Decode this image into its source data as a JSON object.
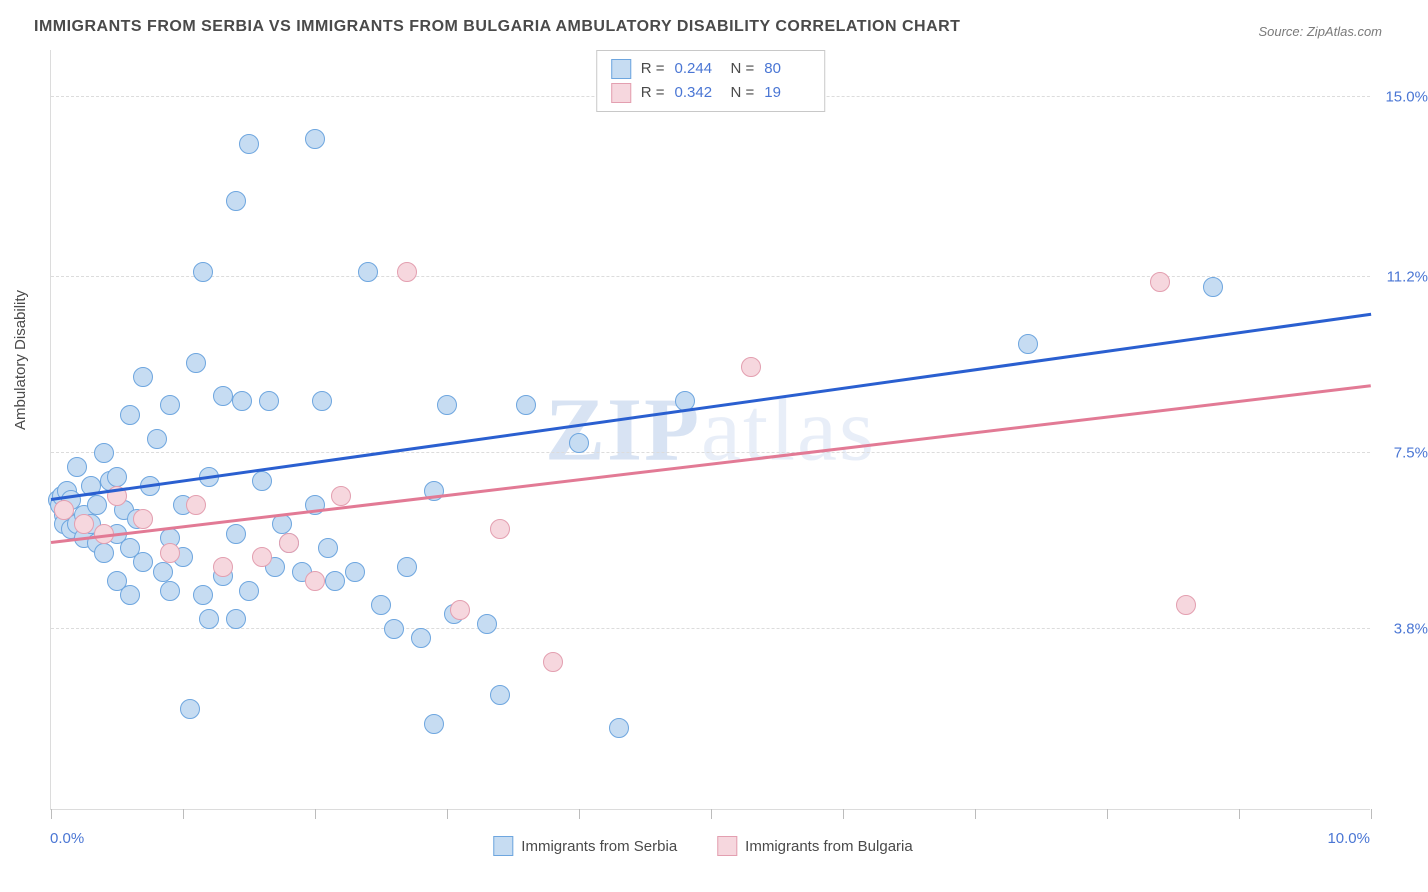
{
  "title": "IMMIGRANTS FROM SERBIA VS IMMIGRANTS FROM BULGARIA AMBULATORY DISABILITY CORRELATION CHART",
  "source": "Source: ZipAtlas.com",
  "y_axis_label": "Ambulatory Disability",
  "watermark_bold": "ZIP",
  "watermark_light": "atlas",
  "chart": {
    "type": "scatter",
    "background_color": "#ffffff",
    "grid_color": "#dcdcdc",
    "x_axis": {
      "min": 0.0,
      "max": 10.0,
      "ticks": [
        0,
        1,
        2,
        3,
        4,
        5,
        6,
        7,
        8,
        9,
        10
      ],
      "label_left": "0.0%",
      "label_right": "10.0%",
      "label_color": "#4a76d4"
    },
    "y_axis": {
      "min": 0.0,
      "max": 16.0,
      "gridlines": [
        3.8,
        7.5,
        11.2,
        15.0
      ],
      "tick_labels": [
        "3.8%",
        "7.5%",
        "11.2%",
        "15.0%"
      ],
      "label_color": "#4a76d4"
    },
    "series": [
      {
        "name": "Immigrants from Serbia",
        "fill": "#c6dcf2",
        "stroke": "#6ea6df",
        "marker_radius": 10,
        "R": "0.244",
        "N": "80",
        "points": [
          [
            0.05,
            6.5
          ],
          [
            0.07,
            6.4
          ],
          [
            0.08,
            6.6
          ],
          [
            0.1,
            6.2
          ],
          [
            0.12,
            6.7
          ],
          [
            0.1,
            6.0
          ],
          [
            0.15,
            6.5
          ],
          [
            0.15,
            5.9
          ],
          [
            0.2,
            7.2
          ],
          [
            0.2,
            6.0
          ],
          [
            0.25,
            6.2
          ],
          [
            0.25,
            5.7
          ],
          [
            0.3,
            6.0
          ],
          [
            0.3,
            6.8
          ],
          [
            0.35,
            6.4
          ],
          [
            0.35,
            5.6
          ],
          [
            0.4,
            7.5
          ],
          [
            0.4,
            5.4
          ],
          [
            0.45,
            6.9
          ],
          [
            0.5,
            7.0
          ],
          [
            0.5,
            5.8
          ],
          [
            0.55,
            6.3
          ],
          [
            0.6,
            5.5
          ],
          [
            0.6,
            8.3
          ],
          [
            0.65,
            6.1
          ],
          [
            0.7,
            5.2
          ],
          [
            0.7,
            9.1
          ],
          [
            0.75,
            6.8
          ],
          [
            0.8,
            7.8
          ],
          [
            0.85,
            5.0
          ],
          [
            0.9,
            8.5
          ],
          [
            0.9,
            4.6
          ],
          [
            1.0,
            6.4
          ],
          [
            1.0,
            5.3
          ],
          [
            1.1,
            9.4
          ],
          [
            1.15,
            11.3
          ],
          [
            1.15,
            4.5
          ],
          [
            1.2,
            7.0
          ],
          [
            1.3,
            4.9
          ],
          [
            1.3,
            8.7
          ],
          [
            1.4,
            12.8
          ],
          [
            1.4,
            5.8
          ],
          [
            1.45,
            8.6
          ],
          [
            1.5,
            14.0
          ],
          [
            1.5,
            4.6
          ],
          [
            1.6,
            6.9
          ],
          [
            1.65,
            8.6
          ],
          [
            1.7,
            5.1
          ],
          [
            1.75,
            6.0
          ],
          [
            1.8,
            5.6
          ],
          [
            1.9,
            5.0
          ],
          [
            2.0,
            14.1
          ],
          [
            2.0,
            6.4
          ],
          [
            2.05,
            8.6
          ],
          [
            2.1,
            5.5
          ],
          [
            2.15,
            4.8
          ],
          [
            2.3,
            5.0
          ],
          [
            2.4,
            11.3
          ],
          [
            2.5,
            4.3
          ],
          [
            2.6,
            3.8
          ],
          [
            2.7,
            5.1
          ],
          [
            2.8,
            3.6
          ],
          [
            2.9,
            6.7
          ],
          [
            2.9,
            1.8
          ],
          [
            3.0,
            8.5
          ],
          [
            3.05,
            4.1
          ],
          [
            3.3,
            3.9
          ],
          [
            3.4,
            2.4
          ],
          [
            3.6,
            8.5
          ],
          [
            4.0,
            7.7
          ],
          [
            4.3,
            1.7
          ],
          [
            4.8,
            8.6
          ],
          [
            7.4,
            9.8
          ],
          [
            8.8,
            11.0
          ],
          [
            1.05,
            2.1
          ],
          [
            0.5,
            4.8
          ],
          [
            0.6,
            4.5
          ],
          [
            1.2,
            4.0
          ],
          [
            1.4,
            4.0
          ],
          [
            0.9,
            5.7
          ]
        ],
        "trend": {
          "x1": 0.0,
          "y1": 6.5,
          "x2": 10.0,
          "y2": 10.4,
          "color": "#2a5fd0",
          "width": 2.5
        }
      },
      {
        "name": "Immigrants from Bulgaria",
        "fill": "#f6d7de",
        "stroke": "#e39fb0",
        "marker_radius": 10,
        "R": "0.342",
        "N": "19",
        "points": [
          [
            0.1,
            6.3
          ],
          [
            0.25,
            6.0
          ],
          [
            0.4,
            5.8
          ],
          [
            0.5,
            6.6
          ],
          [
            0.7,
            6.1
          ],
          [
            0.9,
            5.4
          ],
          [
            1.1,
            6.4
          ],
          [
            1.3,
            5.1
          ],
          [
            1.6,
            5.3
          ],
          [
            1.8,
            5.6
          ],
          [
            2.0,
            4.8
          ],
          [
            2.2,
            6.6
          ],
          [
            2.7,
            11.3
          ],
          [
            3.1,
            4.2
          ],
          [
            3.4,
            5.9
          ],
          [
            3.8,
            3.1
          ],
          [
            5.3,
            9.3
          ],
          [
            8.4,
            11.1
          ],
          [
            8.6,
            4.3
          ]
        ],
        "trend": {
          "x1": 0.0,
          "y1": 5.6,
          "x2": 10.0,
          "y2": 8.9,
          "color": "#e27a95",
          "width": 2.5
        }
      }
    ],
    "stats_box": {
      "border_color": "#c8c8c8",
      "bg": "#ffffff",
      "R_label": "R =",
      "N_label": "N ="
    },
    "legend_bottom": {
      "items": [
        {
          "label": "Immigrants from Serbia",
          "fill": "#c6dcf2",
          "stroke": "#6ea6df"
        },
        {
          "label": "Immigrants from Bulgaria",
          "fill": "#f6d7de",
          "stroke": "#e39fb0"
        }
      ]
    }
  }
}
